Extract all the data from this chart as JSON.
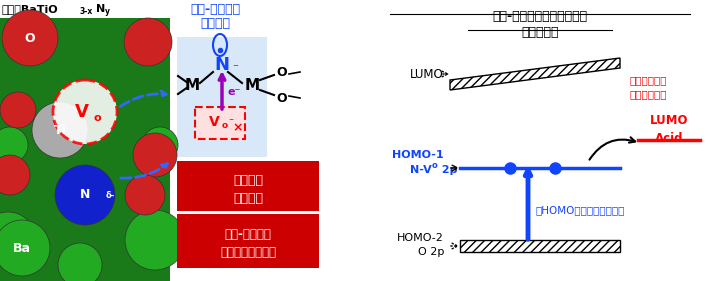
{
  "bg_color": "#ffffff",
  "left_bg": "#228822",
  "title_left1": "六方晶BaTiO",
  "title_left2": "3-x",
  "title_left3": "N",
  "title_left4": "y",
  "title_mid1": "窒素-酸素空孔",
  "title_mid2": "隣接構造",
  "title_right1": "窒素-酸素空孔ドープ酸化物",
  "title_right2": "バンド構造",
  "red_box1a": "窒素への",
  "red_box1b": "電子供与",
  "red_box2a": "窒素-酸素空孔",
  "red_box2b": "中間バンドの形成",
  "red_annot1": "・酸基質との",
  "red_annot2": "反応性の向上",
  "blue_annot": "・HOMOエネルギーの上昇",
  "label_lumo": "LUMO",
  "label_homo1a": "HOMO-1",
  "label_homo1b": "N-V",
  "label_homo1c": "o",
  "label_homo1d": " 2p",
  "label_homo2a": "HOMO-2",
  "label_homo2b": "O 2p",
  "label_lumo_acid": "LUMO\nAcid",
  "mid_blue": "#1144ff",
  "red": "#cc0000",
  "purple": "#880088"
}
